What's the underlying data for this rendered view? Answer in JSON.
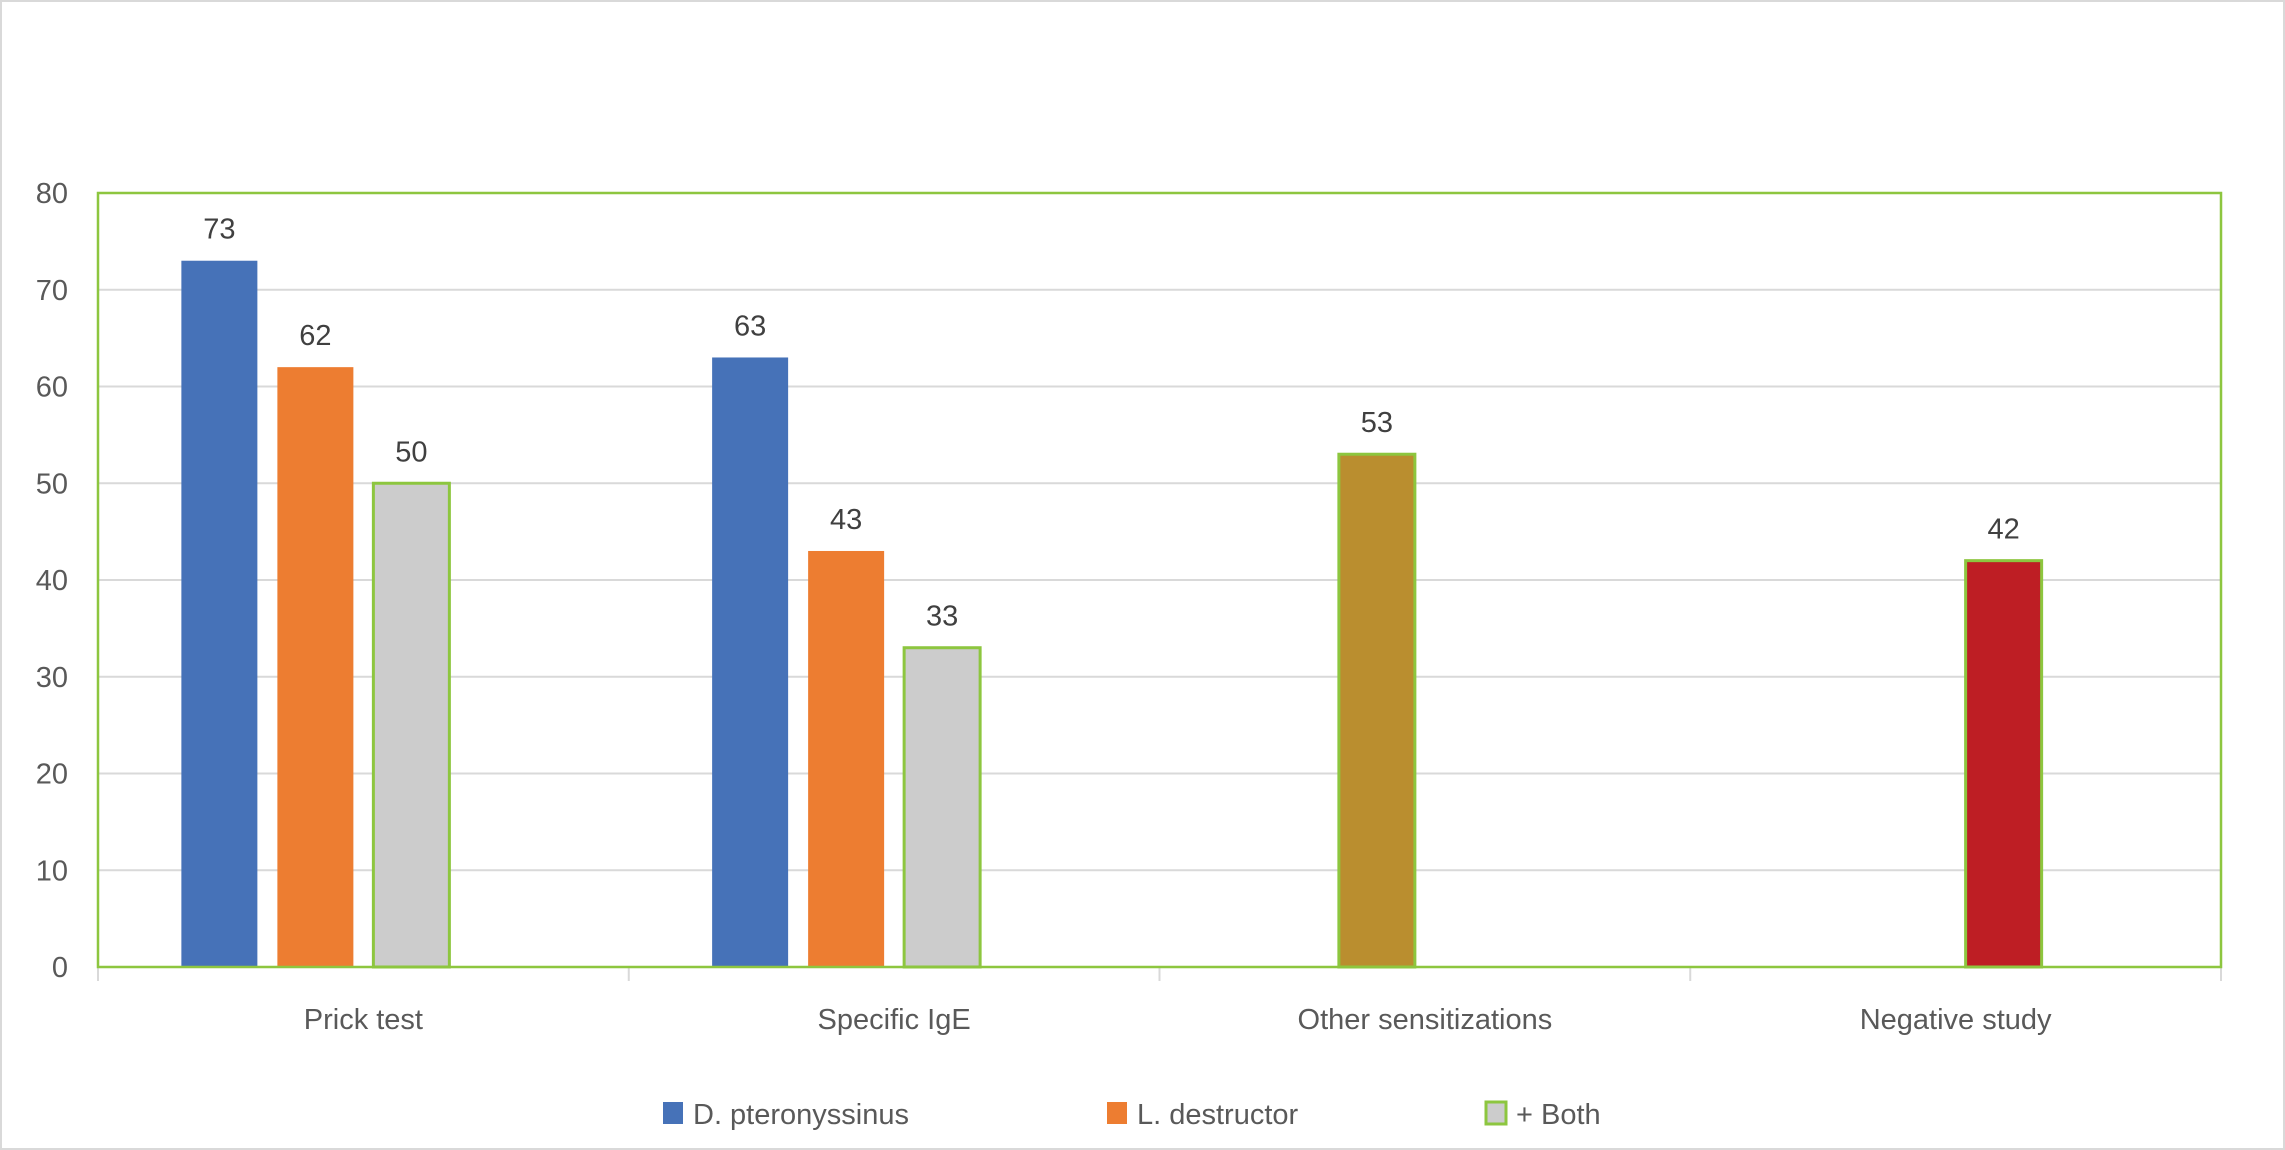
{
  "chart_data": {
    "type": "bar",
    "title": "",
    "xlabel": "",
    "ylabel": "",
    "ylim": [
      0,
      80
    ],
    "yticks": [
      0,
      10,
      20,
      30,
      40,
      50,
      60,
      70,
      80
    ],
    "grid": true,
    "legend_placement": "bottom",
    "categories": [
      "Prick test",
      "Specific IgE",
      "Other sensitizations",
      "Negative study"
    ],
    "series": [
      {
        "name": "D. pteronyssinus",
        "color": "#4672B8",
        "values": [
          73,
          63,
          null,
          null
        ]
      },
      {
        "name": "L. destructor",
        "color": "#ED7D31",
        "values": [
          62,
          43,
          null,
          null
        ]
      },
      {
        "name": "+ Both",
        "color": "#CCCCCC",
        "border": "#8DC63F",
        "values": [
          50,
          33,
          null,
          null
        ]
      },
      {
        "color": "#BA8E2F",
        "border": "#8DC63F",
        "values": [
          null,
          null,
          53,
          null
        ]
      },
      {
        "color": "#BE1E24",
        "border": "#8DC63F",
        "values": [
          null,
          null,
          null,
          42
        ]
      }
    ],
    "plot_border_color": "#8DC63F",
    "gridline_color": "#D9D9D9"
  }
}
